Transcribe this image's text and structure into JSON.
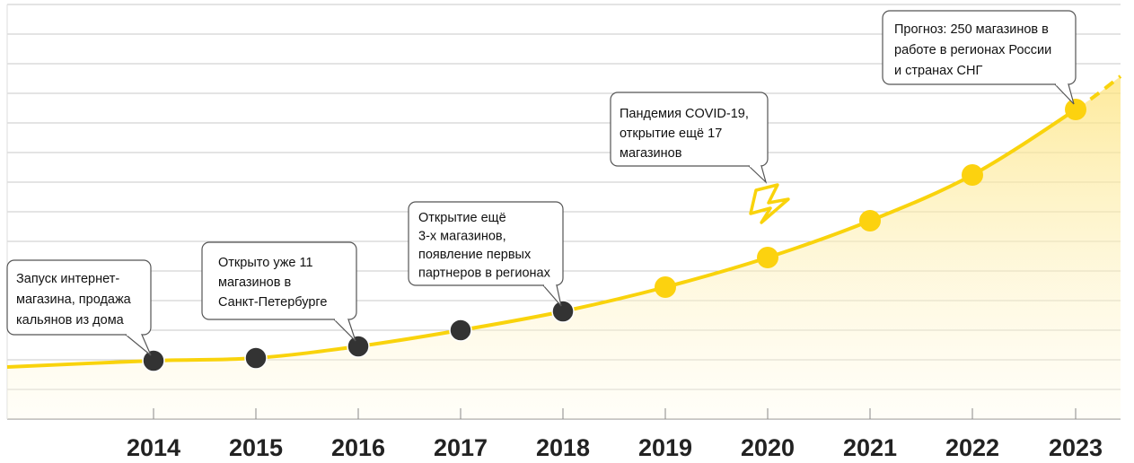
{
  "years": [
    "2014",
    "2015",
    "2016",
    "2017",
    "2018",
    "2019",
    "2020",
    "2021",
    "2022",
    "2023"
  ],
  "milestones": [
    {
      "year": "2014",
      "lines": [
        "Запуск интернет-",
        "магазина, продажа",
        "кальянов из дома"
      ]
    },
    {
      "year": "2016",
      "lines": [
        "Открыто уже 11",
        "магазинов в",
        "Санкт-Петербурге"
      ]
    },
    {
      "year": "2018",
      "lines": [
        "Открытие ещё",
        "3-х магазинов,",
        "появление первых",
        "партнеров в регионах"
      ]
    },
    {
      "year": "2020",
      "lines": [
        "Пандемия COVID-19,",
        "открытие ещё 17",
        "магазинов"
      ]
    },
    {
      "year": "2023",
      "lines": [
        "Прогноз: 250 магазинов в",
        "работе в регионах России",
        "и странах СНГ"
      ]
    }
  ]
}
